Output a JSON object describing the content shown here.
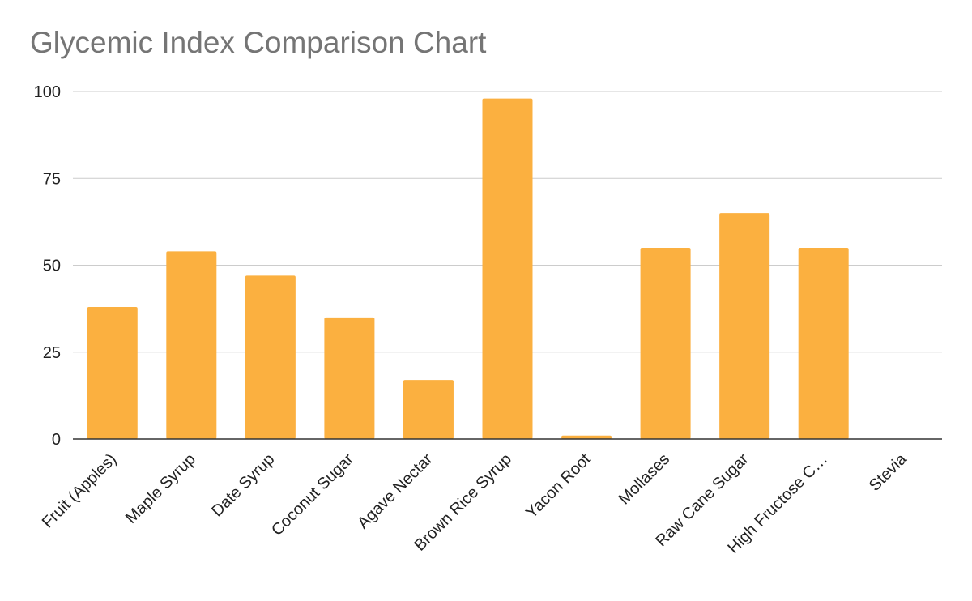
{
  "chart_data": {
    "type": "bar",
    "title": "Glycemic Index Comparison Chart",
    "xlabel": "",
    "ylabel": "",
    "categories": [
      "Fruit (Apples)",
      "Maple Syrup",
      "Date Syrup",
      "Coconut Sugar",
      "Agave Nectar",
      "Brown Rice Syrup",
      "Yacon Root",
      "Mollases",
      "Raw Cane Sugar",
      "High Fructose C…",
      "Stevia"
    ],
    "values": [
      38,
      54,
      47,
      35,
      17,
      98,
      1,
      55,
      65,
      55,
      0
    ],
    "ylim": [
      0,
      100
    ],
    "yticks": [
      "0",
      "25",
      "50",
      "75",
      "100"
    ],
    "ytick_values": [
      0,
      25,
      50,
      75,
      100
    ],
    "grid": true,
    "legend": "none",
    "bar_color": "#FBB040",
    "grid_color": "#CCCCCC",
    "axis_color": "#333333"
  }
}
